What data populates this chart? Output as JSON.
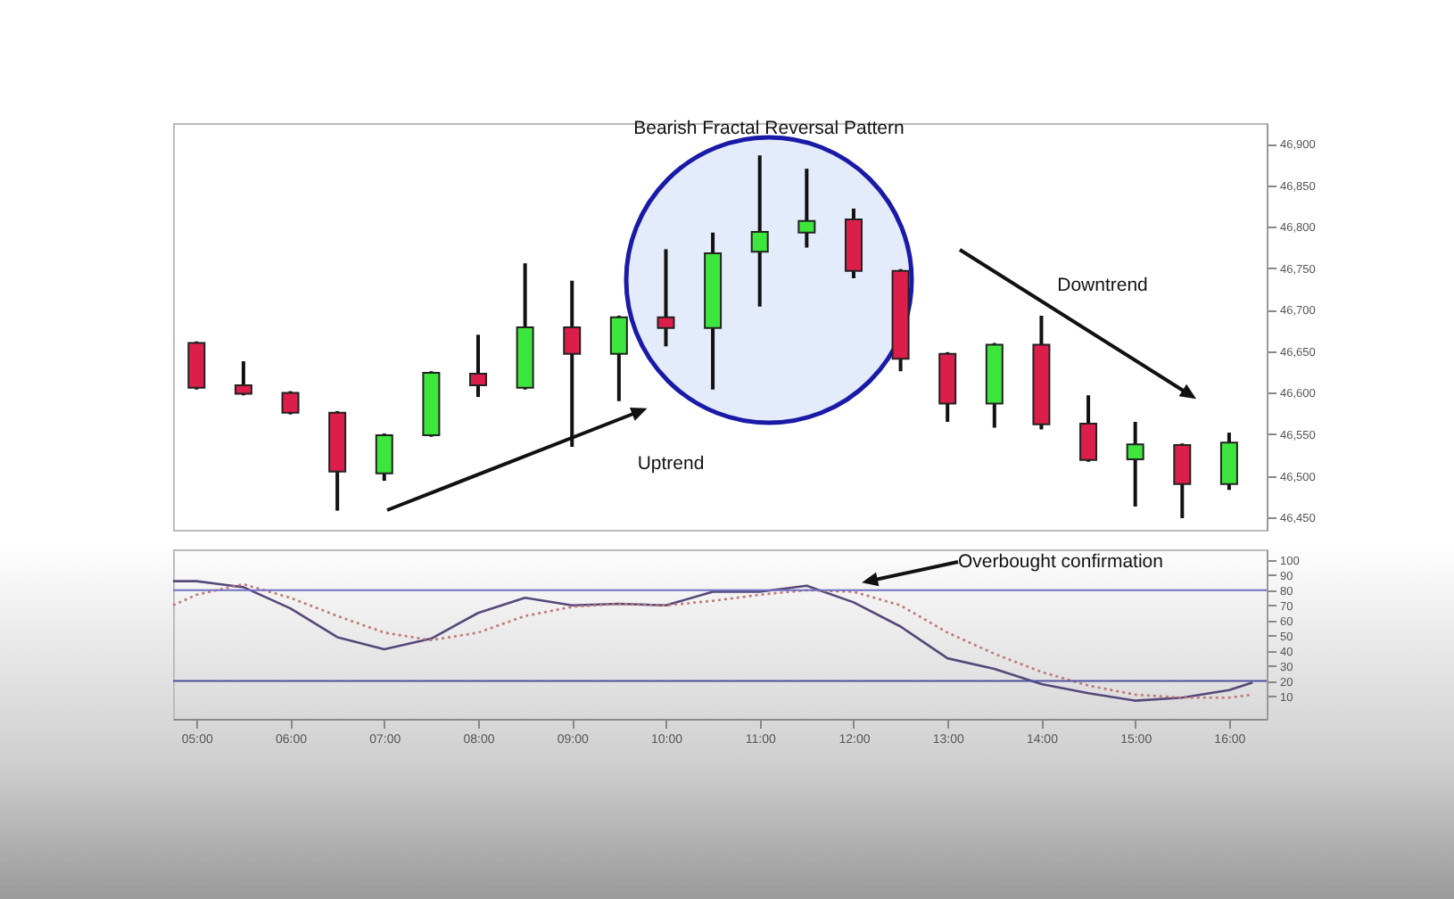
{
  "chart_data": [
    {
      "type": "candlestick",
      "annotations": [
        "Bearish Fractal Reversal Pattern",
        "Uptrend",
        "Downtrend"
      ],
      "x": [
        5,
        5.5,
        6,
        6.5,
        7,
        7.5,
        8,
        8.5,
        9,
        9.5,
        10,
        10.5,
        11,
        11.5,
        12,
        12.5,
        13,
        13.5,
        14,
        14.5,
        15,
        15.5,
        16
      ],
      "ohlc": [
        [
          46660,
          46662,
          46604,
          46606
        ],
        [
          46609,
          46638,
          46597,
          46599
        ],
        [
          46600,
          46602,
          46574,
          46576
        ],
        [
          46576,
          46578,
          46458,
          46505
        ],
        [
          46503,
          46551,
          46494,
          46549
        ],
        [
          46549,
          46626,
          46547,
          46624
        ],
        [
          46623,
          46670,
          46595,
          46609
        ],
        [
          46606,
          46756,
          46604,
          46679
        ],
        [
          46679,
          46735,
          46535,
          46647
        ],
        [
          46647,
          46693,
          46590,
          46691
        ],
        [
          46691,
          46773,
          46656,
          46678
        ],
        [
          46678,
          46793,
          46604,
          46768
        ],
        [
          46770,
          46886,
          46704,
          46794
        ],
        [
          46793,
          46870,
          46775,
          46807
        ],
        [
          46809,
          46822,
          46738,
          46747
        ],
        [
          46747,
          46749,
          46626,
          46641
        ],
        [
          46647,
          46649,
          46565,
          46587
        ],
        [
          46587,
          46660,
          46558,
          46658
        ],
        [
          46658,
          46693,
          46556,
          46562
        ],
        [
          46563,
          46597,
          46517,
          46519
        ],
        [
          46520,
          46565,
          46463,
          46538
        ],
        [
          46537,
          46539,
          46449,
          46490
        ],
        [
          46490,
          46552,
          46483,
          46540
        ]
      ],
      "colors": [
        "#dc1e4a",
        "#dc1e4a",
        "#dc1e4a",
        "#dc1e4a",
        "#3ce63c",
        "#3ce63c",
        "#dc1e4a",
        "#3ce63c",
        "#dc1e4a",
        "#3ce63c",
        "#dc1e4a",
        "#3ce63c",
        "#3ce63c",
        "#3ce63c",
        "#dc1e4a",
        "#dc1e4a",
        "#dc1e4a",
        "#3ce63c",
        "#dc1e4a",
        "#dc1e4a",
        "#3ce63c",
        "#dc1e4a",
        "#3ce63c"
      ],
      "xlim": [
        4.75,
        16.4
      ],
      "ylim": [
        46435,
        46925
      ],
      "yticks": [
        {
          "value": 46450,
          "label": "46,450"
        },
        {
          "value": 46500,
          "label": "46,500"
        },
        {
          "value": 46550,
          "label": "46,550"
        },
        {
          "value": 46600,
          "label": "46,600"
        },
        {
          "value": 46650,
          "label": "46,650"
        },
        {
          "value": 46700,
          "label": "46,700"
        },
        {
          "value": 46750,
          "label": "46,750"
        },
        {
          "value": 46800,
          "label": "46,800"
        },
        {
          "value": 46850,
          "label": "46,850"
        },
        {
          "value": 46900,
          "label": "46,900"
        }
      ],
      "tick_labels": "y"
    },
    {
      "type": "line",
      "annotations": [
        "Overbought confirmation"
      ],
      "x": [
        4.75,
        5,
        5.5,
        6,
        6.5,
        7,
        7.5,
        8,
        8.5,
        9,
        9.5,
        10,
        10.5,
        11,
        11.5,
        12,
        12.5,
        13,
        13.5,
        14,
        14.5,
        15,
        15.5,
        16,
        16.25
      ],
      "series": [
        {
          "color": "#55487a",
          "line_style": "solid",
          "values": [
            86,
            86,
            82,
            68,
            49,
            41,
            48,
            65,
            75,
            70,
            71,
            70,
            79,
            79,
            83,
            72,
            56,
            35,
            28,
            18,
            12,
            7,
            9,
            14,
            19
          ]
        },
        {
          "color": "#c07878",
          "line_style": "dotted",
          "values": [
            70,
            77,
            84,
            75,
            63,
            52,
            47,
            52,
            63,
            69,
            71,
            70,
            73,
            77,
            80,
            79,
            70,
            52,
            38,
            26,
            17,
            11,
            9,
            9,
            11
          ]
        }
      ],
      "ref_lines": [
        {
          "axis": "y",
          "value": 80,
          "color": "#7070c0"
        },
        {
          "axis": "y",
          "value": 20,
          "color": "#5050a0"
        }
      ],
      "xlim": [
        4.75,
        16.4
      ],
      "ylim": [
        -5,
        107
      ],
      "xticks": [
        {
          "value": 5,
          "label": "05:00"
        },
        {
          "value": 6,
          "label": "06:00"
        },
        {
          "value": 7,
          "label": "07:00"
        },
        {
          "value": 8,
          "label": "08:00"
        },
        {
          "value": 9,
          "label": "09:00"
        },
        {
          "value": 10,
          "label": "10:00"
        },
        {
          "value": 11,
          "label": "11:00"
        },
        {
          "value": 12,
          "label": "12:00"
        },
        {
          "value": 13,
          "label": "13:00"
        },
        {
          "value": 14,
          "label": "14:00"
        },
        {
          "value": 15,
          "label": "15:00"
        },
        {
          "value": 16,
          "label": "16:00"
        }
      ],
      "yticks": [
        10,
        20,
        30,
        40,
        50,
        60,
        70,
        80,
        90,
        100
      ]
    }
  ]
}
